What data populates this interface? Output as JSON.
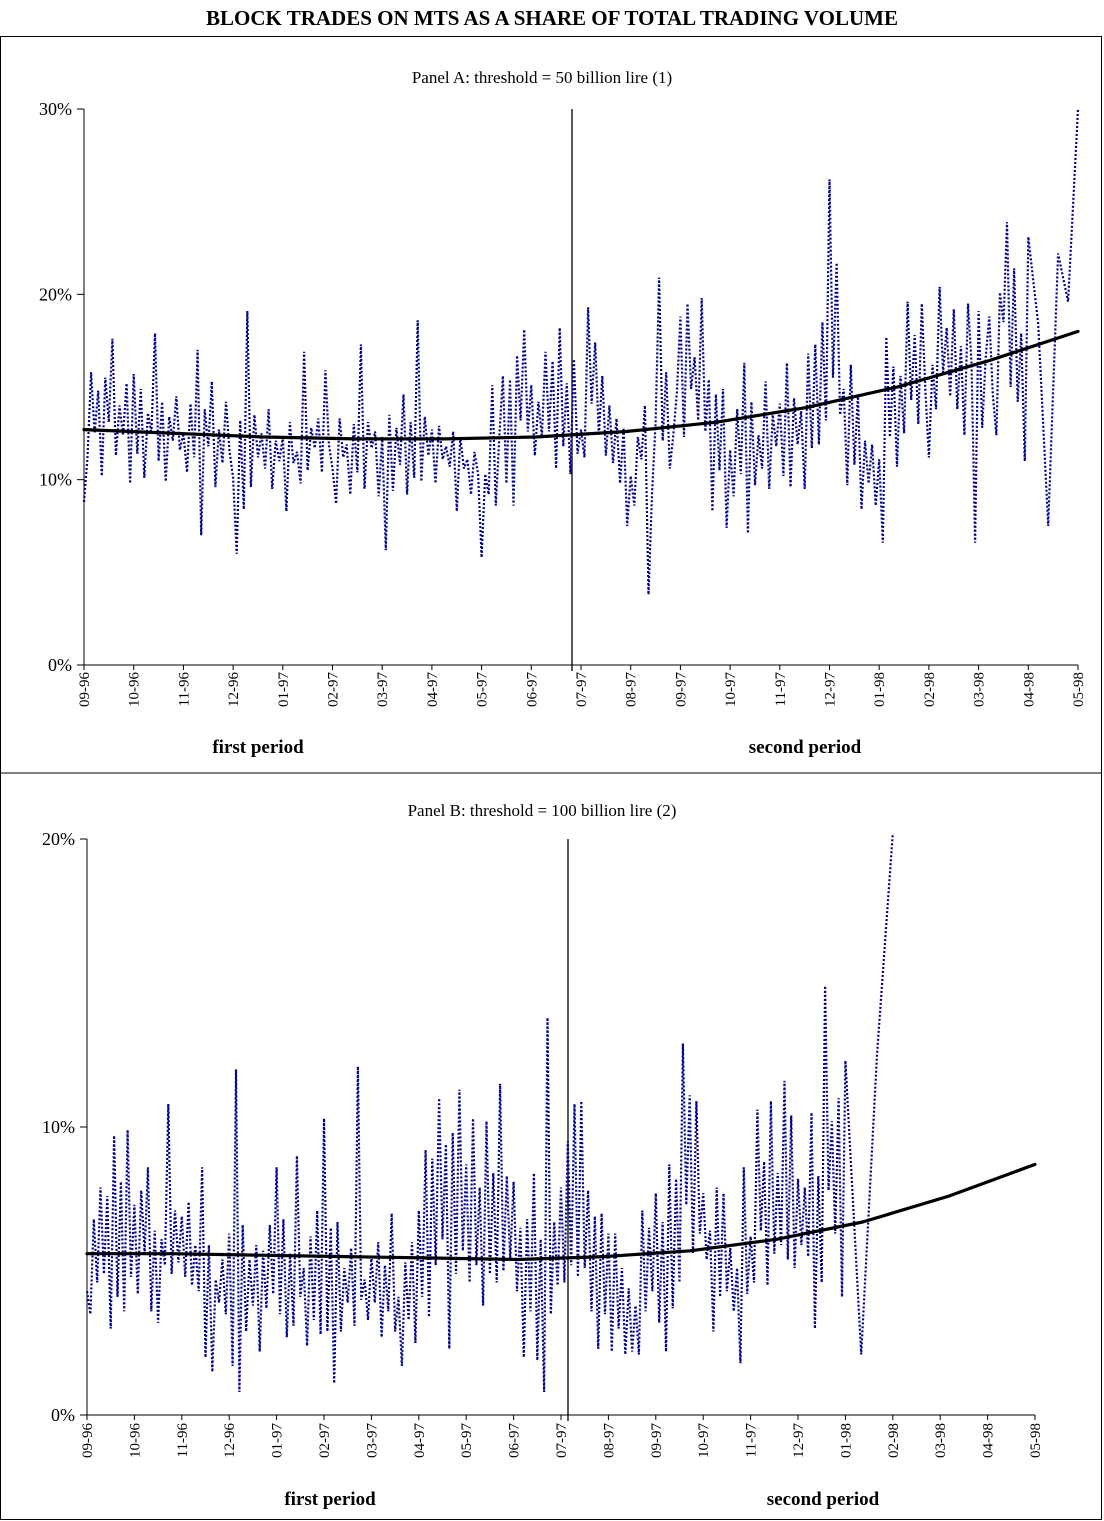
{
  "title": "BLOCK TRADES ON MTS AS A SHARE OF TOTAL TRADING VOLUME",
  "colors": {
    "series": "#00008B",
    "trend": "#000000"
  },
  "chart_data": [
    {
      "type": "line",
      "title": "Panel A: threshold = 50 billion lire (1)",
      "y_unit": "%",
      "ylim": [
        0,
        30
      ],
      "yticks": [
        "0%",
        "10%",
        "20%",
        "30%"
      ],
      "yticks_values": [
        0,
        10,
        20,
        30
      ],
      "x_ticks": [
        "09-96",
        "10-96",
        "11-96",
        "12-96",
        "01-97",
        "02-97",
        "03-97",
        "04-97",
        "05-97",
        "06-97",
        "07-97",
        "08-97",
        "09-97",
        "10-97",
        "11-97",
        "12-97",
        "01-98",
        "02-98",
        "03-98",
        "04-98",
        "05-98"
      ],
      "divider_at": "07-97",
      "period_labels": [
        "first period",
        "second period"
      ],
      "series": [
        {
          "style": "dotted",
          "values_per_month": [
            [
              8.8,
              11.2,
              15.8,
              12.5,
              14.8,
              10.2,
              15.5,
              13.1,
              17.6,
              11.3,
              14.0,
              12.4,
              15.2,
              9.8
            ],
            [
              15.7,
              11.4,
              14.9,
              10.1,
              13.6,
              12.5,
              17.9,
              11.0,
              14.2,
              9.9,
              13.4,
              12.1,
              14.5,
              11.6
            ],
            [
              12.5,
              10.4,
              14.1,
              11.2,
              17.0,
              7.0,
              13.8,
              11.8,
              15.3,
              9.6,
              12.7,
              10.9,
              14.2,
              11.5
            ],
            [
              10.1,
              6.0,
              13.2,
              8.4,
              19.1,
              9.6,
              13.5,
              11.2,
              12.5,
              10.6,
              13.8,
              9.5,
              12.1,
              11.0
            ],
            [
              12.3,
              8.3,
              13.1,
              10.9,
              11.5,
              9.8,
              16.9,
              10.5,
              12.8,
              11.7,
              13.3,
              10.4,
              15.9,
              11.9
            ],
            [
              10.6,
              8.7,
              13.3,
              11.2,
              11.9,
              9.2,
              13.0,
              10.4,
              17.3,
              9.5,
              13.1,
              11.7,
              12.6,
              9.1
            ],
            [
              12.3,
              6.2,
              13.5,
              9.4,
              12.8,
              10.8,
              14.6,
              9.2,
              13.1,
              10.1,
              18.6,
              9.9,
              13.4,
              11.3
            ],
            [
              12.7,
              9.8,
              12.9,
              11.1,
              11.8,
              10.7,
              12.6,
              8.3,
              12.3,
              10.6,
              11.1,
              9.2,
              11.5,
              10.3
            ],
            [
              5.8,
              10.3,
              9.2,
              15.1,
              8.6,
              12.4,
              15.6,
              9.8,
              15.4,
              8.6,
              16.7,
              13.2,
              18.1,
              12.6
            ],
            [
              15.1,
              11.3,
              14.2,
              12.3,
              16.9,
              12.6,
              16.4,
              10.6,
              18.2,
              11.8,
              15.2,
              10.3,
              16.5,
              11.4
            ],
            [
              12.7,
              11.2,
              19.3,
              14.1,
              17.4,
              12.4,
              15.6,
              11.3,
              14.0,
              10.9,
              13.3,
              9.8,
              12.8,
              7.5
            ],
            [
              10.2,
              8.6,
              12.3,
              11.1,
              14.0,
              3.8,
              9.2,
              13.1,
              20.9,
              12.1,
              15.8,
              10.6,
              12.4,
              14.7
            ],
            [
              18.8,
              12.3,
              19.5,
              14.9,
              16.6,
              13.2,
              19.8,
              12.6,
              15.4,
              8.3,
              14.6,
              10.5,
              14.9,
              7.4
            ],
            [
              11.6,
              9.1,
              13.8,
              10.3,
              16.3,
              7.1,
              14.2,
              9.7,
              12.4,
              10.6,
              15.3,
              9.5,
              13.5,
              11.8
            ],
            [
              14.1,
              10.2,
              16.3,
              9.6,
              14.4,
              11.9,
              13.7,
              9.5,
              16.8,
              11.7,
              17.3,
              11.9,
              18.5,
              13.2
            ],
            [
              26.2,
              15.5,
              21.7,
              13.5,
              14.9,
              9.7,
              16.2,
              10.8,
              14.6,
              8.4,
              12.1,
              9.8,
              11.9,
              8.6
            ],
            [
              11.1,
              6.6,
              17.7,
              12.3,
              16.1,
              10.7,
              15.6,
              12.5,
              19.6,
              14.3,
              17.8,
              13.0,
              19.5,
              14.8
            ],
            [
              11.2,
              16.2,
              13.8,
              20.4,
              15.8,
              18.2,
              14.5,
              19.2,
              13.8,
              17.2,
              12.4,
              19.5,
              16.3,
              6.6
            ],
            [
              19.1,
              12.8,
              16.6,
              18.8,
              14.6,
              12.4,
              20.1,
              18.5,
              23.9,
              15.0,
              21.4,
              14.2,
              17.9,
              11.0
            ],
            [
              23.1,
              18.4,
              7.5,
              22.2,
              19.6,
              30.0
            ]
          ]
        },
        {
          "style": "solid",
          "name": "",
          "trend_y": [
            12.7,
            12.5,
            12.3,
            12.2,
            12.2,
            12.3,
            12.6,
            13.1,
            13.9,
            15.0,
            16.4,
            18.0
          ]
        }
      ]
    },
    {
      "type": "line",
      "title": "Panel B: threshold = 100 billion lire (2)",
      "y_unit": "%",
      "ylim": [
        0,
        20
      ],
      "yticks": [
        "0%",
        "10%",
        "20%"
      ],
      "yticks_values": [
        0,
        10,
        20
      ],
      "x_ticks": [
        "09-96",
        "10-96",
        "11-96",
        "12-96",
        "01-97",
        "02-97",
        "03-97",
        "04-97",
        "05-97",
        "06-97",
        "07-97",
        "08-97",
        "09-97",
        "10-97",
        "11-97",
        "12-97",
        "01-98",
        "02-98",
        "03-98",
        "04-98",
        "05-98"
      ],
      "divider_at": "07-97",
      "period_labels": [
        "first period",
        "second period"
      ],
      "series": [
        {
          "style": "dotted",
          "values_per_month": [
            [
              4.3,
              3.5,
              6.8,
              4.6,
              7.9,
              4.9,
              7.6,
              3.0,
              9.7,
              4.1,
              8.1,
              3.6,
              9.9,
              4.8
            ],
            [
              7.3,
              4.2,
              7.8,
              5.6,
              8.6,
              3.6,
              6.4,
              3.2,
              6.1,
              5.2,
              10.8,
              4.9,
              7.1,
              5.3
            ],
            [
              6.9,
              4.8,
              7.4,
              4.5,
              5.9,
              4.3,
              8.6,
              2.0,
              5.9,
              1.5,
              4.7,
              3.9,
              5.4,
              3.5
            ],
            [
              6.3,
              1.7,
              12.0,
              0.8,
              6.6,
              2.9,
              5.4,
              3.8,
              5.9,
              2.2,
              5.7,
              3.7,
              6.6,
              4.2
            ],
            [
              8.6,
              3.5,
              6.8,
              2.7,
              5.6,
              3.1,
              9.0,
              4.1,
              5.1,
              2.4,
              6.2,
              3.3,
              7.1,
              2.8
            ],
            [
              10.3,
              2.9,
              6.5,
              1.1,
              6.7,
              2.9,
              5.1,
              3.9,
              5.8,
              3.1,
              12.1,
              4.0,
              4.7,
              3.3
            ],
            [
              5.5,
              3.9,
              6.0,
              2.7,
              5.2,
              3.6,
              7.0,
              2.9,
              4.1,
              1.7,
              5.3,
              3.3,
              6.0,
              2.5
            ],
            [
              7.1,
              4.1,
              9.2,
              3.4,
              8.9,
              5.2,
              11.0,
              6.1,
              9.4,
              2.3,
              9.8,
              4.9,
              11.3,
              5.7
            ],
            [
              8.7,
              4.6,
              10.3,
              5.2,
              7.9,
              3.8,
              10.2,
              4.9,
              8.4,
              4.6,
              11.5,
              5.0,
              8.3,
              5.4
            ],
            [
              8.1,
              4.3,
              6.5,
              2.0,
              6.8,
              3.6,
              8.4,
              1.9,
              6.1,
              0.8,
              13.8,
              3.5,
              6.7,
              4.5
            ],
            [
              7.9,
              4.6,
              9.5,
              5.2,
              10.8,
              4.8,
              10.9,
              5.1,
              7.8,
              3.6,
              6.9,
              2.3,
              7.0,
              3.5
            ],
            [
              6.3,
              2.2,
              6.3,
              3.0,
              5.1,
              2.1,
              4.4,
              2.2,
              3.8,
              2.1,
              7.1,
              3.6,
              6.5,
              4.3
            ],
            [
              7.7,
              3.2,
              6.7,
              2.2,
              8.7,
              3.7,
              8.2,
              4.6,
              12.9,
              7.3,
              11.1,
              5.6,
              10.9,
              6.3
            ],
            [
              7.7,
              5.4,
              6.4,
              2.9,
              7.9,
              4.1,
              7.7,
              4.3,
              5.8,
              3.6,
              5.1,
              1.8,
              8.6,
              4.2
            ],
            [
              6.2,
              4.6,
              10.6,
              6.4,
              8.8,
              4.5,
              10.9,
              5.6,
              8.4,
              5.9,
              11.6,
              5.4,
              10.4,
              5.1
            ],
            [
              8.2,
              5.9,
              7.9,
              5.5,
              10.5,
              3.0,
              8.3,
              4.6,
              14.9,
              7.8,
              10.2,
              6.3,
              11.0,
              4.1
            ],
            [
              12.3,
              2.1,
              12.5,
              20.2
            ]
          ]
        },
        {
          "style": "solid",
          "name": "",
          "trend_y": [
            5.6,
            5.6,
            5.55,
            5.5,
            5.45,
            5.4,
            5.5,
            5.7,
            6.1,
            6.7,
            7.6,
            8.7
          ]
        }
      ]
    }
  ]
}
